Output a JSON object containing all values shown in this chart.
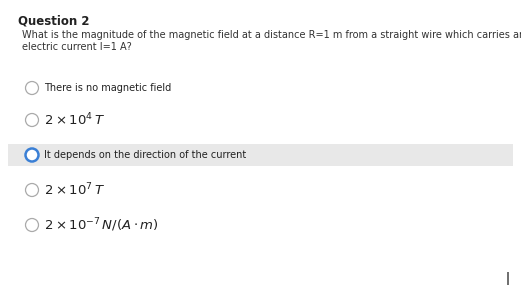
{
  "title": "Question 2",
  "question_line1": "What is the magnitude of the magnetic field at a distance R=1 m from a straight wire which carries an",
  "question_line2": "electric current I=1 A?",
  "options": [
    {
      "text": "There is no magnetic field",
      "selected": false,
      "highlighted": false,
      "math": false
    },
    {
      "text": "$2 \\times 10^{4}\\, T$",
      "selected": false,
      "highlighted": false,
      "math": true
    },
    {
      "text": "It depends on the direction of the current",
      "selected": true,
      "highlighted": true,
      "math": false
    },
    {
      "text": "$2 \\times 10^{7}\\, T$",
      "selected": false,
      "highlighted": false,
      "math": true
    },
    {
      "text": "$2 \\times 10^{-7}\\, N/(A \\cdot m)$",
      "selected": false,
      "highlighted": false,
      "math": true
    }
  ],
  "bg_color": "#ffffff",
  "highlight_color": "#e8e8e8",
  "title_fontsize": 8.5,
  "question_fontsize": 7.0,
  "option_fontsize_small": 7.0,
  "option_fontsize_math": 9.5,
  "circle_color_default": "#aaaaaa",
  "circle_color_selected": "#3a7fd5",
  "text_color_dark": "#222222",
  "text_color_mid": "#333333"
}
